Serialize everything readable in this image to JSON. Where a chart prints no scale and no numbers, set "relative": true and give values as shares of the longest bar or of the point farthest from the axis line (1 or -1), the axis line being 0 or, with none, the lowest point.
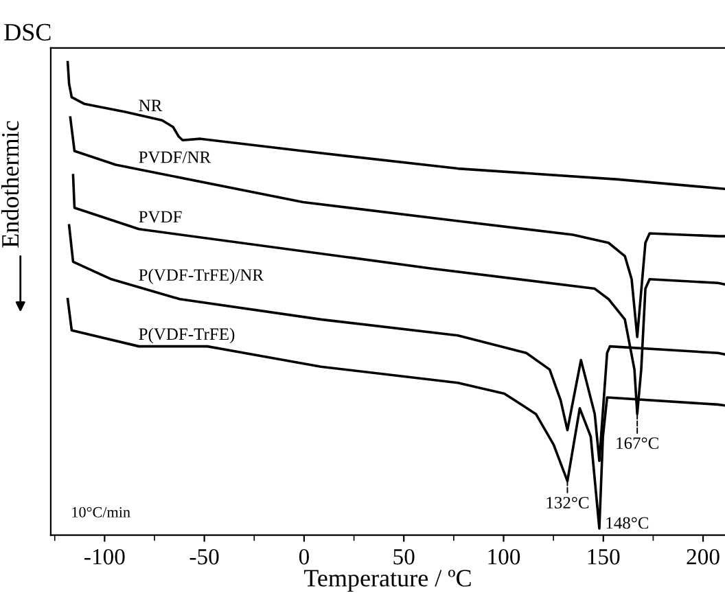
{
  "chart_data": {
    "type": "line",
    "title": "DSC",
    "xlabel": "Temperature / ºC",
    "ylabel": "Endothermic",
    "relative": true,
    "grid": false,
    "marker": "none",
    "line_style": "solid",
    "xlim": [
      -127,
      211
    ],
    "xticks": [
      {
        "value": -125,
        "label": null
      },
      -100,
      {
        "value": -75,
        "label": null
      },
      -50,
      {
        "value": -25,
        "label": null
      },
      0,
      {
        "value": 25,
        "label": null
      },
      50,
      {
        "value": 75,
        "label": null
      },
      100,
      {
        "value": 125,
        "label": null
      },
      150,
      {
        "value": 175,
        "label": null
      },
      200
    ],
    "series": [
      {
        "name": "NR",
        "color": "#000000",
        "x": [
          -118.5,
          -117.8,
          -116.5,
          -110.3,
          -89.7,
          -71.2,
          -65.7,
          -62.9,
          -60.9,
          -52.0,
          -0.5,
          77.1,
          157.4,
          210.9
        ],
        "values": [
          1.0,
          0.954,
          0.926,
          0.912,
          0.895,
          0.877,
          0.863,
          0.843,
          0.835,
          0.838,
          0.812,
          0.775,
          0.752,
          0.732
        ]
      },
      {
        "name": "PVDF/NR",
        "color": "#000000",
        "x": [
          -117.2,
          -115.1,
          -94.5,
          -0.5,
          77.1,
          134.7,
          152.6,
          160.8,
          164.2,
          167.0,
          171.1,
          173.2,
          207.5,
          210.9
        ],
        "values": [
          0.883,
          0.812,
          0.783,
          0.704,
          0.664,
          0.635,
          0.618,
          0.59,
          0.541,
          0.419,
          0.618,
          0.638,
          0.632,
          0.632
        ]
      },
      {
        "name": "PVDF",
        "color": "#000000",
        "x": [
          -115.8,
          -115.1,
          -82.8,
          63.3,
          145.7,
          152.6,
          160.8,
          165.6,
          167.0,
          169.0,
          171.1,
          173.2,
          207.5,
          210.9
        ],
        "values": [
          0.761,
          0.692,
          0.647,
          0.564,
          0.521,
          0.499,
          0.456,
          0.35,
          0.256,
          0.35,
          0.521,
          0.541,
          0.533,
          0.53
        ]
      },
      {
        "name": "P(VDF-TrFE)/NR",
        "color": "#000000",
        "x": [
          -117.8,
          -115.8,
          -96.6,
          -62.3,
          8.4,
          77.1,
          111.4,
          123.1,
          128.6,
          132,
          138.8,
          145.7,
          148,
          151.9,
          153.3,
          207.5,
          210.9
        ],
        "values": [
          0.655,
          0.578,
          0.541,
          0.499,
          0.456,
          0.422,
          0.385,
          0.35,
          0.285,
          0.222,
          0.37,
          0.256,
          0.157,
          0.385,
          0.399,
          0.385,
          0.382
        ]
      },
      {
        "name": "P(VDF-TrFE)",
        "color": "#000000",
        "x": [
          -118.5,
          -116.5,
          -82.8,
          -48.5,
          8.4,
          77.1,
          100.4,
          116.2,
          125.1,
          132,
          138.2,
          143.7,
          148,
          149.8,
          151.9,
          207.5,
          210.9
        ],
        "values": [
          0.499,
          0.433,
          0.399,
          0.399,
          0.356,
          0.322,
          0.299,
          0.256,
          0.191,
          0.114,
          0.268,
          0.208,
          0.014,
          0.208,
          0.291,
          0.276,
          0.274
        ]
      }
    ],
    "annotations": [
      {
        "text": "167°C",
        "x": 167,
        "y": 0.256
      },
      {
        "text": "132°C",
        "x": 132,
        "y": 0.114
      },
      {
        "text": "148°C",
        "x": 148,
        "y": 0.014
      },
      "10°C/min"
    ]
  }
}
